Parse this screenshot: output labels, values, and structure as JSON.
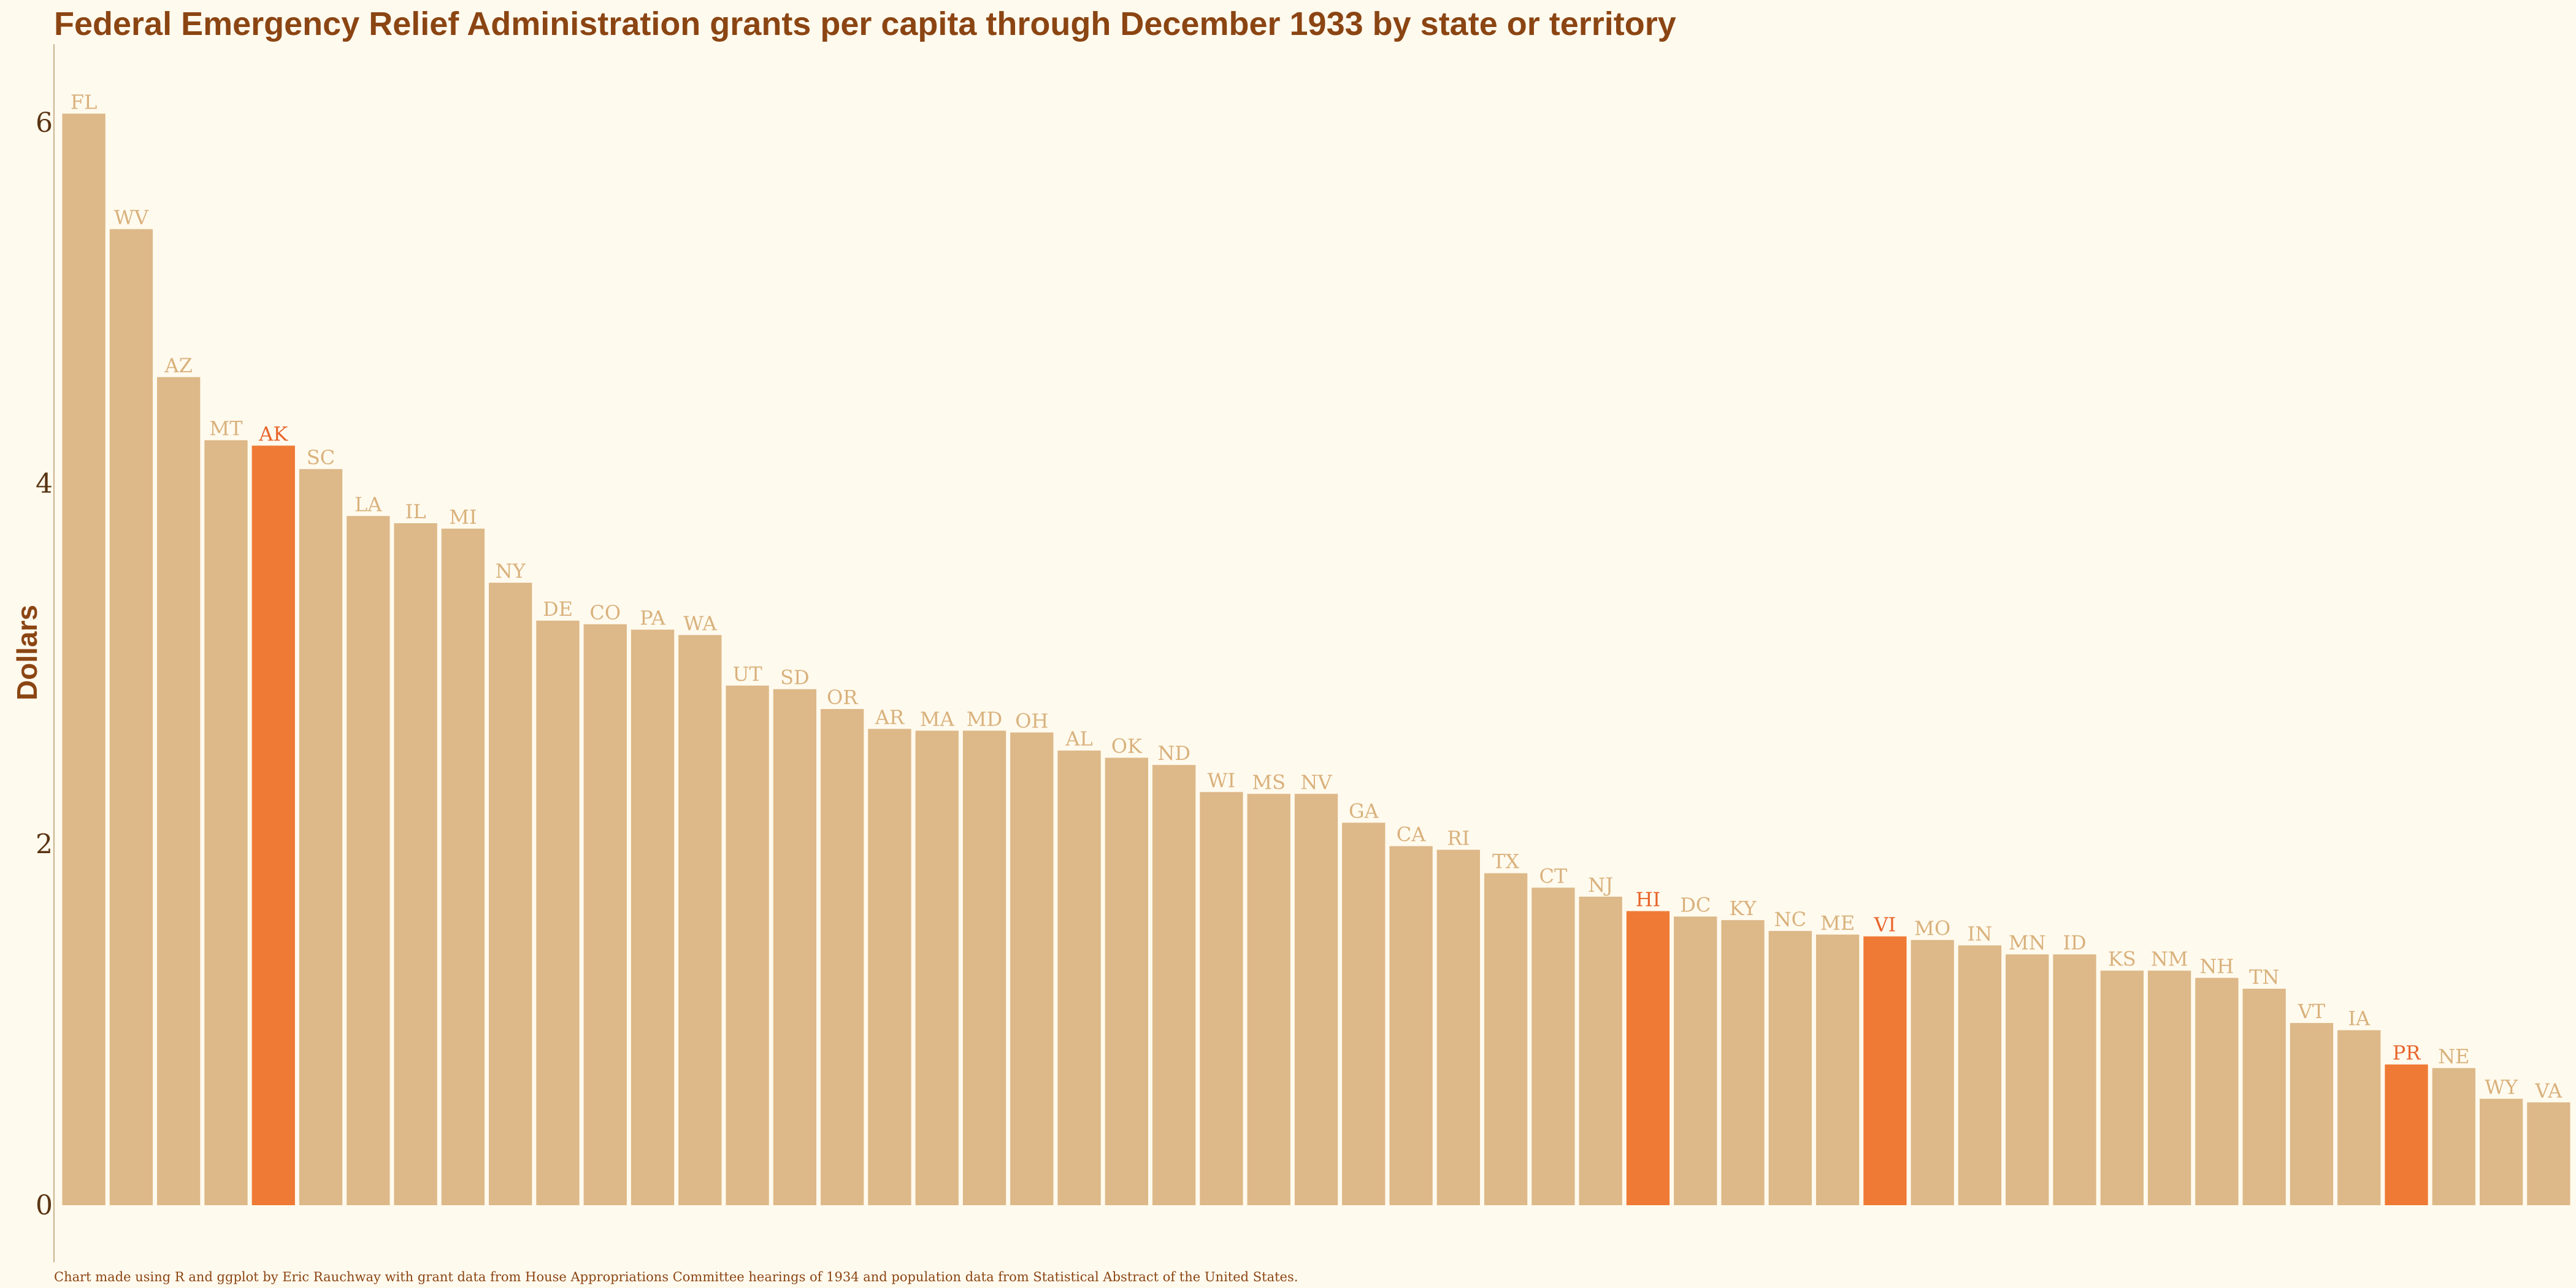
{
  "chart_data": {
    "type": "bar",
    "title": "Federal Emergency Relief Administration grants per capita through December 1933 by state or territory",
    "ylabel": "Dollars",
    "xlabel": "",
    "caption": "Chart made using R and ggplot by Eric Rauchway with grant data from House Appropriations Committee hearings of 1934 and population data from Statistical Abstract of the United States.",
    "ylim": [
      0,
      6.2
    ],
    "yticks": [
      0,
      2,
      4,
      6
    ],
    "grid": false,
    "colors": {
      "state": "#ddb888",
      "territory": "#ef7a35",
      "background": "#fffaee",
      "text": "#8b4513"
    },
    "categories": [
      "FL",
      "WV",
      "AZ",
      "MT",
      "AK",
      "SC",
      "LA",
      "IL",
      "MI",
      "NY",
      "DE",
      "CO",
      "PA",
      "WA",
      "UT",
      "SD",
      "OR",
      "AR",
      "MA",
      "MD",
      "OH",
      "AL",
      "OK",
      "ND",
      "WI",
      "MS",
      "NV",
      "GA",
      "CA",
      "RI",
      "TX",
      "CT",
      "NJ",
      "HI",
      "DC",
      "KY",
      "NC",
      "ME",
      "VI",
      "MO",
      "IN",
      "MN",
      "ID",
      "KS",
      "NM",
      "NH",
      "TN",
      "VT",
      "IA",
      "PR",
      "NE",
      "WY",
      "VA"
    ],
    "values": [
      6.05,
      5.41,
      4.59,
      4.24,
      4.21,
      4.08,
      3.82,
      3.78,
      3.75,
      3.45,
      3.24,
      3.22,
      3.19,
      3.16,
      2.88,
      2.86,
      2.75,
      2.64,
      2.63,
      2.63,
      2.62,
      2.52,
      2.48,
      2.44,
      2.29,
      2.28,
      2.28,
      2.12,
      1.99,
      1.97,
      1.84,
      1.76,
      1.71,
      1.63,
      1.6,
      1.58,
      1.52,
      1.5,
      1.49,
      1.47,
      1.44,
      1.39,
      1.39,
      1.3,
      1.3,
      1.26,
      1.2,
      1.01,
      0.97,
      0.78,
      0.76,
      0.59,
      0.57
    ],
    "highlighted": [
      "AK",
      "HI",
      "VI",
      "PR"
    ]
  }
}
